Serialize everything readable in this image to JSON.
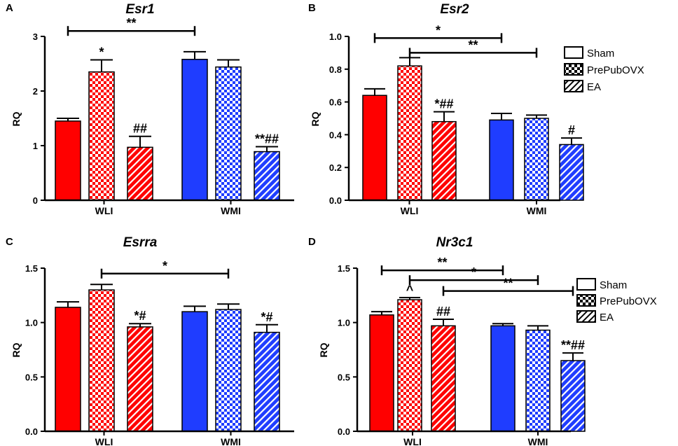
{
  "figure": {
    "colors": {
      "WLI": "#ff0000",
      "WMI": "#1f3dff",
      "axis": "#000000"
    },
    "legend": [
      "Sham",
      "PrePubOVX",
      "EA"
    ]
  },
  "chart_data": [
    {
      "panel": "A",
      "title": "Esr1",
      "type": "bar",
      "ylabel": "RQ",
      "ylim": [
        0,
        3
      ],
      "yticks": [
        "0",
        "1",
        "2",
        "3"
      ],
      "ytick_values": [
        0,
        1,
        2,
        3
      ],
      "groups": [
        "WLI",
        "WMI"
      ],
      "series": [
        "Sham",
        "PrePubOVX",
        "EA"
      ],
      "values": {
        "WLI": [
          1.45,
          2.35,
          0.97
        ],
        "WMI": [
          2.58,
          2.44,
          0.89
        ]
      },
      "errors": {
        "WLI": [
          0.05,
          0.22,
          0.2
        ],
        "WMI": [
          0.14,
          0.13,
          0.09
        ]
      },
      "bar_annotations": {
        "WLI": [
          "",
          "*",
          "##"
        ],
        "WMI": [
          "",
          "",
          "**##"
        ]
      },
      "brackets": [
        {
          "from": [
            "WLI",
            0
          ],
          "to": [
            "WMI",
            0
          ],
          "level": 3.1,
          "label": "**"
        }
      ]
    },
    {
      "panel": "B",
      "title": "Esr2",
      "type": "bar",
      "ylabel": "RQ",
      "ylim": [
        0,
        1.0
      ],
      "yticks": [
        "0.0",
        "0.2",
        "0.4",
        "0.6",
        "0.8",
        "1.0"
      ],
      "ytick_values": [
        0,
        0.2,
        0.4,
        0.6,
        0.8,
        1.0
      ],
      "groups": [
        "WLI",
        "WMI"
      ],
      "series": [
        "Sham",
        "PrePubOVX",
        "EA"
      ],
      "values": {
        "WLI": [
          0.64,
          0.82,
          0.48
        ],
        "WMI": [
          0.49,
          0.5,
          0.34
        ]
      },
      "errors": {
        "WLI": [
          0.04,
          0.05,
          0.06
        ],
        "WMI": [
          0.04,
          0.02,
          0.04
        ]
      },
      "bar_annotations": {
        "WLI": [
          "",
          "",
          "*##"
        ],
        "WMI": [
          "",
          "",
          "#"
        ]
      },
      "brackets": [
        {
          "from": [
            "WLI",
            0
          ],
          "to": [
            "WMI",
            0
          ],
          "level": 0.99,
          "label": "*"
        },
        {
          "from": [
            "WLI",
            1
          ],
          "to": [
            "WMI",
            1
          ],
          "level": 0.9,
          "label": "**"
        }
      ]
    },
    {
      "panel": "C",
      "title": "Esrra",
      "type": "bar",
      "ylabel": "RQ",
      "ylim": [
        0,
        1.5
      ],
      "yticks": [
        "0.0",
        "0.5",
        "1.0",
        "1.5"
      ],
      "ytick_values": [
        0,
        0.5,
        1.0,
        1.5
      ],
      "groups": [
        "WLI",
        "WMI"
      ],
      "series": [
        "Sham",
        "PrePubOVX",
        "EA"
      ],
      "values": {
        "WLI": [
          1.14,
          1.3,
          0.96
        ],
        "WMI": [
          1.1,
          1.12,
          0.91
        ]
      },
      "errors": {
        "WLI": [
          0.05,
          0.05,
          0.03
        ],
        "WMI": [
          0.05,
          0.05,
          0.07
        ]
      },
      "bar_annotations": {
        "WLI": [
          "",
          "",
          "*#"
        ],
        "WMI": [
          "",
          "",
          "*#"
        ]
      },
      "brackets": [
        {
          "from": [
            "WLI",
            1
          ],
          "to": [
            "WMI",
            1
          ],
          "level": 1.45,
          "label": "*"
        }
      ]
    },
    {
      "panel": "D",
      "title": "Nr3c1",
      "type": "bar",
      "ylabel": "RQ",
      "ylim": [
        0,
        1.5
      ],
      "yticks": [
        "0.0",
        "0.5",
        "1.0",
        "1.5"
      ],
      "ytick_values": [
        0,
        0.5,
        1.0,
        1.5
      ],
      "groups": [
        "WLI",
        "WMI"
      ],
      "series": [
        "Sham",
        "PrePubOVX",
        "EA"
      ],
      "values": {
        "WLI": [
          1.07,
          1.21,
          0.97
        ],
        "WMI": [
          0.97,
          0.93,
          0.65
        ]
      },
      "errors": {
        "WLI": [
          0.03,
          0.02,
          0.06
        ],
        "WMI": [
          0.02,
          0.04,
          0.07
        ]
      },
      "bar_annotations": {
        "WLI": [
          "",
          "^",
          "##"
        ],
        "WMI": [
          "",
          "",
          "**##"
        ]
      },
      "brackets": [
        {
          "from": [
            "WLI",
            0
          ],
          "to": [
            "WMI",
            0
          ],
          "level": 1.48,
          "label": "**"
        },
        {
          "from": [
            "WLI",
            1
          ],
          "to": [
            "WMI",
            1
          ],
          "level": 1.39,
          "label": "*"
        },
        {
          "from": [
            "WLI",
            2
          ],
          "to": [
            "WMI",
            2
          ],
          "level": 1.29,
          "label": "**"
        }
      ]
    }
  ]
}
